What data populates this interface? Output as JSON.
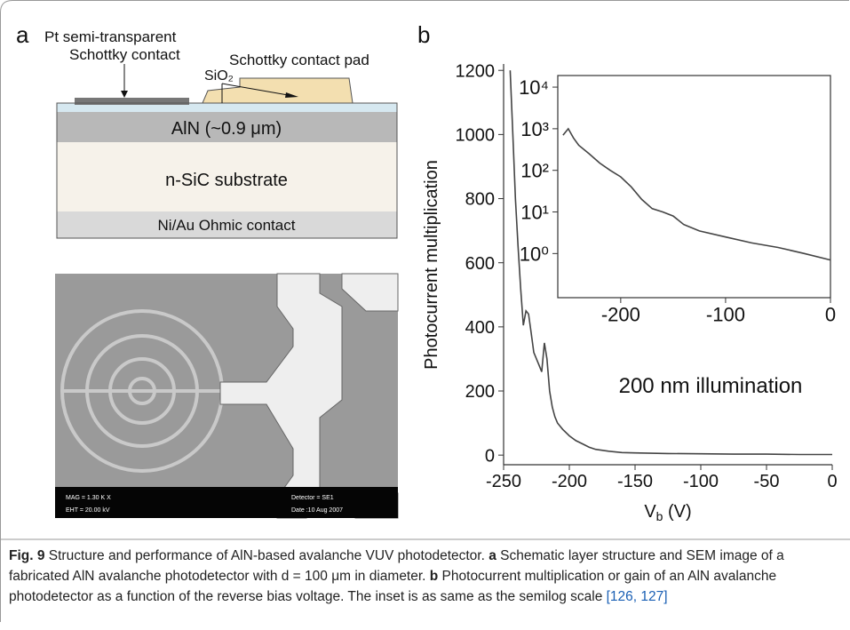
{
  "panels": {
    "a": "a",
    "b": "b"
  },
  "schematic": {
    "pt_label_1": "Pt semi-transparent",
    "pt_label_2": "Schottky contact",
    "sio2": "SiO₂",
    "pad": "Schottky contact pad",
    "aln": "AlN (~0.9 μm)",
    "substrate": "n-SiC substrate",
    "ohmic": "Ni/Au Ohmic contact"
  },
  "sem": {
    "mag": "MAG = 1.30 K X",
    "eht": "EHT = 20.00 kV",
    "detector": "Detector = SE1",
    "date": "Date :10 Aug 2007"
  },
  "chart_data": [
    {
      "type": "line",
      "ylabel": "Photocurrent multiplication",
      "xlabel": {
        "symbol": "V",
        "sub": "b",
        "unit": " (V)"
      },
      "annotation": "200 nm illumination",
      "x": [
        -245,
        -243,
        -241,
        -239,
        -237,
        -235,
        -233,
        -231,
        -229,
        -227,
        -225,
        -223,
        -221,
        -219,
        -217,
        -215,
        -213,
        -211,
        -209,
        -205,
        -200,
        -195,
        -190,
        -185,
        -180,
        -170,
        -160,
        -150,
        -125,
        -100,
        -75,
        -50,
        -25,
        0
      ],
      "series": [
        {
          "color": "#444444",
          "values": [
            1200,
            1000,
            800,
            650,
            520,
            405,
            450,
            440,
            380,
            320,
            300,
            280,
            260,
            350,
            300,
            200,
            150,
            120,
            100,
            80,
            60,
            45,
            35,
            25,
            18,
            12,
            8,
            7,
            5,
            4,
            3,
            3,
            2,
            2
          ]
        }
      ],
      "xlim": [
        -250,
        0
      ],
      "ylim": [
        -30,
        1220
      ],
      "xticks": [
        -250,
        -200,
        -150,
        -100,
        -50,
        0
      ],
      "yticks": [
        0,
        200,
        400,
        600,
        800,
        1000,
        1200
      ]
    },
    {
      "type": "line",
      "log_y": true,
      "x": [
        -255,
        -250,
        -245,
        -240,
        -230,
        -220,
        -210,
        -200,
        -190,
        -180,
        -170,
        -160,
        -150,
        -140,
        -125,
        -100,
        -75,
        -50,
        -25,
        0
      ],
      "series": [
        {
          "color": "#444444",
          "values": [
            700,
            1000,
            600,
            400,
            250,
            150,
            100,
            70,
            40,
            20,
            12,
            10,
            8,
            5,
            3.5,
            2.5,
            1.8,
            1.4,
            1.0,
            0.7
          ]
        }
      ],
      "xlim": [
        -260,
        0
      ],
      "ylim": [
        0.087,
        19000
      ],
      "xticks": [
        -200,
        -100,
        0
      ],
      "yticks": [
        {
          "value": 1,
          "label": "10⁰"
        },
        {
          "value": 10,
          "label": "10¹"
        },
        {
          "value": 100,
          "label": "10²"
        },
        {
          "value": 1000,
          "label": "10³"
        },
        {
          "value": 10000,
          "label": "10⁴"
        }
      ]
    }
  ],
  "caption": {
    "fig": "Fig. 9",
    "title": " Structure and performance of AlN-based avalanche VUV photodetector. ",
    "a": "a",
    "a_text": " Schematic layer structure and SEM image of a fabricated AlN avalanche photodetector with d = 100 μm in diameter. ",
    "b": "b",
    "b_text": " Photocurrent multiplication or gain of an AlN avalanche photodetector as a function of the reverse bias voltage. The inset is as same as the semilog scale ",
    "refs": "[126, 127]"
  }
}
